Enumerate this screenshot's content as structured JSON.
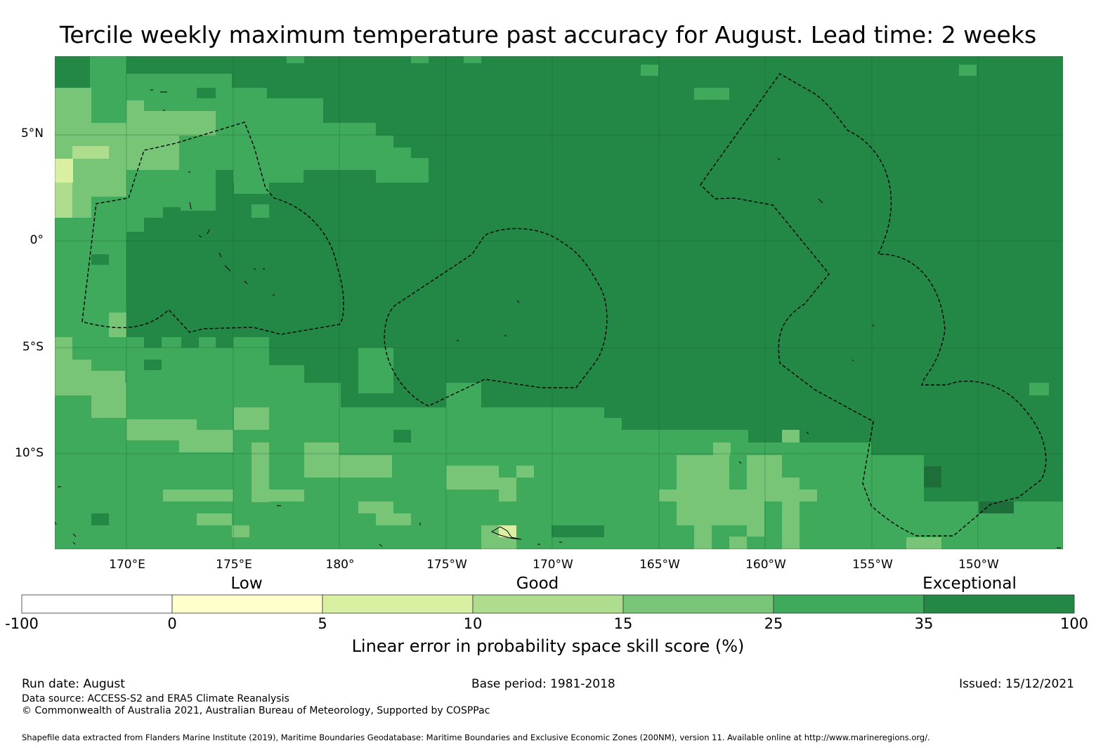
{
  "title": "Tercile weekly maximum temperature past accuracy for August. Lead time: 2 weeks",
  "colors": {
    "very_dark": "#1e6e3a",
    "dark": "#238845",
    "medium": "#40aa5c",
    "light": "#78c578",
    "lighter": "#aedd8e",
    "pale": "#d9f0a3",
    "cream": "#ffffcc",
    "white": "#ffffff"
  },
  "map": {
    "lat_labels": [
      "5°N",
      "0°",
      "5°S",
      "10°S"
    ],
    "lon_labels": [
      "170°E",
      "175°E",
      "180°",
      "175°W",
      "170°W",
      "165°W",
      "160°W",
      "155°W",
      "150°W"
    ],
    "extent": {
      "lon_min": 166.6,
      "lon_max": 214.0,
      "lat_min": -14.6,
      "lat_max": 8.6
    },
    "category_labels": [
      "Low",
      "Good",
      "Exceptional"
    ]
  },
  "legend": {
    "ticks": [
      "-100",
      "0",
      "5",
      "10",
      "15",
      "25",
      "35",
      "100"
    ],
    "colors": [
      "#ffffff",
      "#ffffcc",
      "#d9f0a3",
      "#aedd8e",
      "#78c578",
      "#40aa5c",
      "#238845"
    ],
    "title": "Linear error in probability space skill score (%)"
  },
  "footer": {
    "run_date": "Run date: August",
    "base_period": "Base period: 1981-2018",
    "issued": "Issued: 15/12/2021",
    "data_source": "Data source: ACCESS-S2 and ERA5 Climate Reanalysis",
    "copyright": "© Commonwealth of Australia 2021, Australian Bureau of Meteorology, Supported by COSPPac",
    "shapefile": "Shapefile data extracted from Flanders Marine Institute (2019), Maritime Boundaries Geodatabase: Maritime Boundaries and Exclusive Economic Zones (200NM), version 11. Available online at http://www.marineregions.org/."
  }
}
